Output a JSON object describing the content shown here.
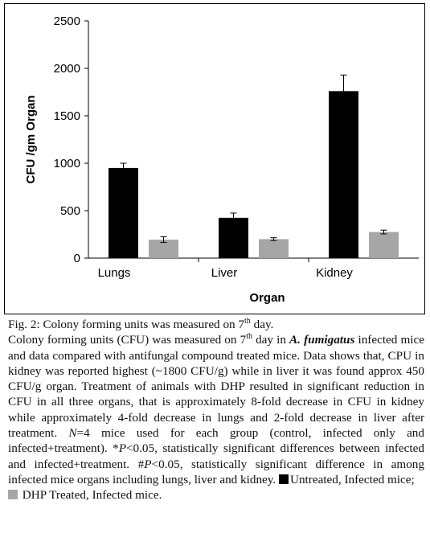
{
  "chart_data": {
    "type": "bar",
    "categories": [
      "Lungs",
      "Liver",
      "Kidney"
    ],
    "series": [
      {
        "values": [
          950,
          425,
          1760
        ],
        "errors": [
          50,
          50,
          170
        ],
        "color": "#000000"
      },
      {
        "values": [
          195,
          200,
          275
        ],
        "errors": [
          30,
          15,
          20
        ],
        "color": "#a6a6a6"
      }
    ],
    "xlabel": "Organ",
    "ylabel": "CFU /gm Organ",
    "ylim": [
      0,
      2500
    ],
    "yticks": [
      0,
      500,
      1000,
      1500,
      2000,
      2500
    ],
    "grid": false,
    "legend": "none"
  },
  "caption": {
    "title": "Fig. 2: Colony forming units was measured on 7",
    "title_sup": "th",
    "title_end": " day.",
    "l1a": "Colony forming units (CFU) was measured on 7",
    "l1_sup": "th",
    "l1b": " day in ",
    "species": "A. fumigatus",
    "l1c": " infected mice and data compared with antifungal compound treated mice. Data shows that, CPU in kidney was reported highest (~1800 CFU/g) while in liver it was found approx 450 CFU/g organ. Treatment of animals with DHP resulted in significant reduction in CFU in all three organs, that is approximately 8-fold decrease in CFU in kidney while approximately 4-fold decrease in lungs and 2-fold decrease in liver after treatment. ",
    "n_label": "N",
    "l1d": "=4 mice used for each group (control, infected only and infected+treatment). *",
    "p1": "P",
    "l1e": "<0.05, statistically significant differences between infected and infected+treatment. #",
    "p2": "P",
    "l1f": "<0.05, statistically significant difference in among infected mice organs including lungs, liver and kidney. ",
    "legend_untreated": "Untreated, Infected mice;",
    "legend_treated": "DHP Treated, Infected mice."
  }
}
